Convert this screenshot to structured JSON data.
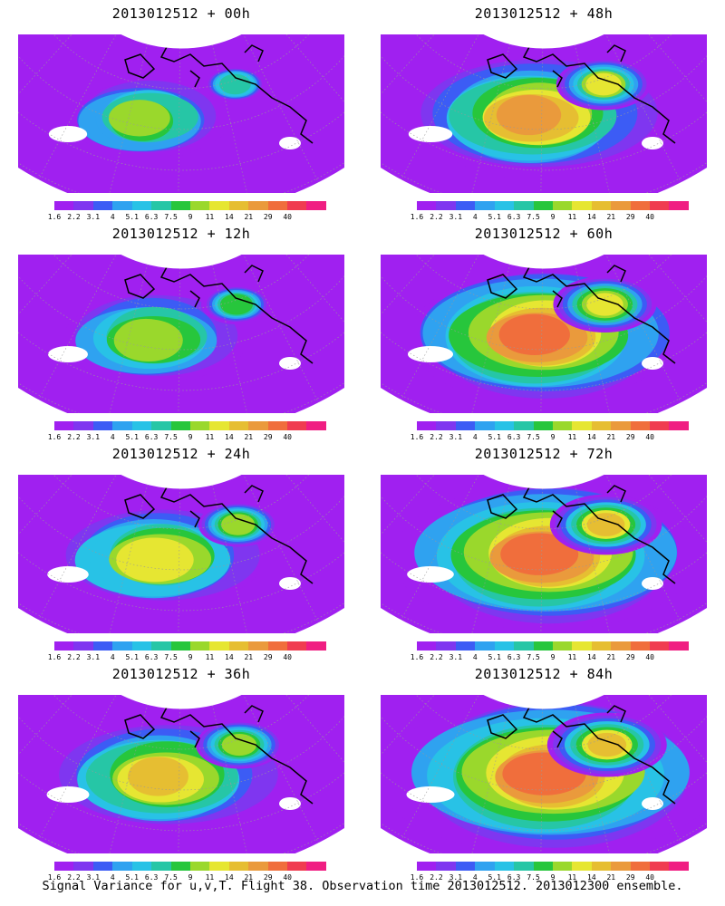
{
  "panels": [
    {
      "title": "2013012512 + 00h",
      "hours": 0,
      "loc": 0.22,
      "peak": 0.55,
      "spread": 0.32
    },
    {
      "title": "2013012512 + 12h",
      "hours": 12,
      "loc": 0.3,
      "peak": 0.62,
      "spread": 0.4
    },
    {
      "title": "2013012512 + 24h",
      "hours": 24,
      "loc": 0.38,
      "peak": 0.7,
      "spread": 0.48
    },
    {
      "title": "2013012512 + 36h",
      "hours": 36,
      "loc": 0.45,
      "peak": 0.74,
      "spread": 0.55
    },
    {
      "title": "2013012512 + 48h",
      "hours": 48,
      "loc": 0.55,
      "peak": 0.8,
      "spread": 0.62
    },
    {
      "title": "2013012512 + 60h",
      "hours": 60,
      "loc": 0.62,
      "peak": 0.86,
      "spread": 0.7
    },
    {
      "title": "2013012512 + 72h",
      "hours": 72,
      "loc": 0.68,
      "peak": 0.9,
      "spread": 0.78
    },
    {
      "title": "2013012512 + 84h",
      "hours": 84,
      "loc": 0.74,
      "peak": 0.93,
      "spread": 0.85
    }
  ],
  "legend": {
    "labels": [
      "1.6",
      "2.2",
      "3.1",
      "4",
      "5.1",
      "6.3",
      "7.5",
      "9",
      "11",
      "14",
      "21",
      "29",
      "40"
    ],
    "colors": [
      "#a020f0",
      "#7f36f0",
      "#3c5cf5",
      "#2fa2f0",
      "#28c2e6",
      "#26c6a6",
      "#27c63c",
      "#9ad82c",
      "#e6e632",
      "#e6be32",
      "#ea9a3c",
      "#f06e3c",
      "#f03c50",
      "#f01e82"
    ]
  },
  "footer": {
    "caption": "Signal Variance for u,v,T. Flight 38. Observation time 2013012512. 2013012300 ensemble."
  }
}
